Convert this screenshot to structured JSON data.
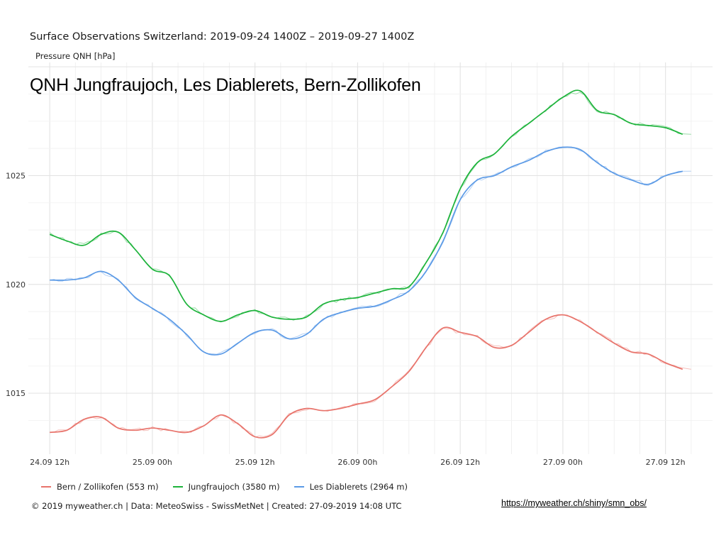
{
  "chart_data": {
    "type": "line",
    "title": "Surface Observations Switzerland: 2019-09-24 1400Z – 2019-09-27 1400Z",
    "subtitle": "Pressure QNH [hPa]",
    "overlay_title": "QNH Jungfraujoch, Les Diablerets, Bern-Zollikofen",
    "x_ticks": [
      "24.09 12h",
      "25.09 00h",
      "25.09 12h",
      "26.09 00h",
      "26.09 12h",
      "27.09 00h",
      "27.09 12h"
    ],
    "y_ticks": [
      1015,
      1020,
      1025
    ],
    "xlim_hours": [
      -2.5,
      77.5
    ],
    "ylim": [
      1012.2,
      1030.2
    ],
    "grid": true,
    "legend_position": "bottom",
    "x_hours": [
      0,
      2,
      4,
      6,
      8,
      10,
      12,
      14,
      16,
      18,
      20,
      22,
      24,
      26,
      28,
      30,
      32,
      34,
      36,
      38,
      40,
      42,
      44,
      46,
      48,
      50,
      52,
      54,
      56,
      58,
      60,
      62,
      64,
      66,
      68,
      70,
      72,
      74
    ],
    "series": [
      {
        "name": "Bern / Zollikofen (553 m)",
        "color": "#e8736b",
        "values": [
          1013.2,
          1013.3,
          1013.8,
          1013.9,
          1013.4,
          1013.3,
          1013.4,
          1013.3,
          1013.2,
          1013.5,
          1014.0,
          1013.6,
          1013.0,
          1013.1,
          1014.0,
          1014.3,
          1014.2,
          1014.3,
          1014.5,
          1014.7,
          1015.3,
          1016.0,
          1017.1,
          1018.0,
          1017.8,
          1017.6,
          1017.1,
          1017.2,
          1017.8,
          1018.4,
          1018.6,
          1018.3,
          1017.8,
          1017.3,
          1016.9,
          1016.8,
          1016.4,
          1016.1
        ]
      },
      {
        "name": "Jungfraujoch (3580 m)",
        "color": "#1db33b",
        "values": [
          1022.3,
          1022.0,
          1021.8,
          1022.3,
          1022.4,
          1021.6,
          1020.7,
          1020.4,
          1019.1,
          1018.6,
          1018.3,
          1018.6,
          1018.8,
          1018.5,
          1018.4,
          1018.5,
          1019.1,
          1019.3,
          1019.4,
          1019.6,
          1019.8,
          1019.9,
          1021.0,
          1022.4,
          1024.4,
          1025.6,
          1026.0,
          1026.8,
          1027.4,
          1028.0,
          1028.6,
          1028.9,
          1028.0,
          1027.8,
          1027.4,
          1027.3,
          1027.2,
          1026.9
        ]
      },
      {
        "name": "Les Diablerets (2964 m)",
        "color": "#5b9ae6",
        "values": [
          1020.2,
          1020.2,
          1020.3,
          1020.6,
          1020.2,
          1019.4,
          1018.9,
          1018.4,
          1017.7,
          1016.9,
          1016.8,
          1017.3,
          1017.8,
          1017.9,
          1017.5,
          1017.7,
          1018.4,
          1018.7,
          1018.9,
          1019.0,
          1019.3,
          1019.7,
          1020.6,
          1022.0,
          1023.9,
          1024.8,
          1025.0,
          1025.4,
          1025.7,
          1026.1,
          1026.3,
          1026.2,
          1025.6,
          1025.1,
          1024.8,
          1024.6,
          1025.0,
          1025.2
        ]
      }
    ]
  },
  "legend": [
    {
      "label": "Bern / Zollikofen (553 m)",
      "color": "#e8736b"
    },
    {
      "label": "Jungfraujoch (3580 m)",
      "color": "#1db33b"
    },
    {
      "label": "Les Diablerets (2964 m)",
      "color": "#5b9ae6"
    }
  ],
  "footer": {
    "credit": "© 2019 myweather.ch | Data: MeteoSwiss - SwissMetNet | Created: 27-09-2019 14:08 UTC",
    "link": "https://myweather.ch/shiny/smn_obs/"
  }
}
